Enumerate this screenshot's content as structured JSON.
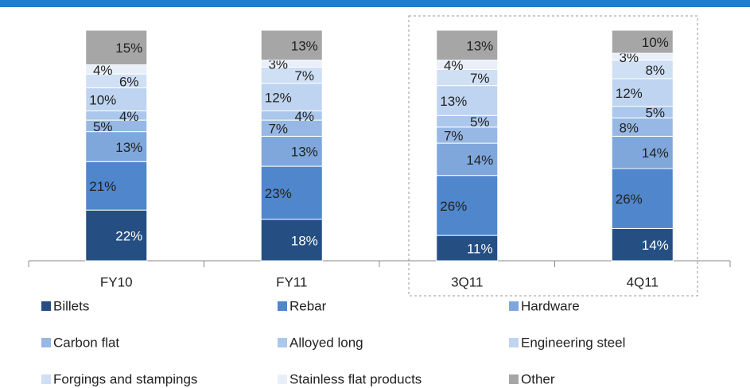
{
  "chart_data": {
    "type": "stacked_bar",
    "categories": [
      "FY10",
      "FY11",
      "3Q11",
      "4Q11"
    ],
    "series": [
      {
        "name": "Billets",
        "color": "#254f82",
        "values": [
          22,
          18,
          11,
          14
        ],
        "value_labels": [
          "22%",
          "18%",
          "11%",
          "14%"
        ]
      },
      {
        "name": "Rebar",
        "color": "#4f86cc",
        "values": [
          21,
          23,
          26,
          26
        ],
        "value_labels": [
          "21%",
          "23%",
          "26%",
          "26%"
        ]
      },
      {
        "name": "Hardware",
        "color": "#7fa7dc",
        "values": [
          13,
          13,
          14,
          14
        ],
        "value_labels": [
          "13%",
          "13%",
          "14%",
          "14%"
        ]
      },
      {
        "name": "Carbon flat",
        "color": "#97b8e4",
        "values": [
          5,
          7,
          7,
          8
        ],
        "value_labels": [
          "5%",
          "7%",
          "7%",
          "8%"
        ]
      },
      {
        "name": "Alloyed long",
        "color": "#abc7eb",
        "values": [
          4,
          4,
          5,
          5
        ],
        "value_labels": [
          "4%",
          "4%",
          "5%",
          "5%"
        ]
      },
      {
        "name": "Engineering steel",
        "color": "#bed4f0",
        "values": [
          10,
          12,
          13,
          12
        ],
        "value_labels": [
          "10%",
          "12%",
          "13%",
          "12%"
        ]
      },
      {
        "name": "Forgings and stampings",
        "color": "#cfdff4",
        "values": [
          6,
          7,
          7,
          8
        ],
        "value_labels": [
          "6%",
          "7%",
          "7%",
          "8%"
        ]
      },
      {
        "name": "Stainless flat products",
        "color": "#e8eff9",
        "values": [
          4,
          3,
          4,
          3
        ],
        "value_labels": [
          "4%",
          "3%",
          "4%",
          "3%"
        ]
      },
      {
        "name": "Other",
        "color": "#a6a6a6",
        "values": [
          15,
          13,
          13,
          10
        ],
        "value_labels": [
          "15%",
          "13%",
          "13%",
          "10%"
        ]
      }
    ]
  }
}
